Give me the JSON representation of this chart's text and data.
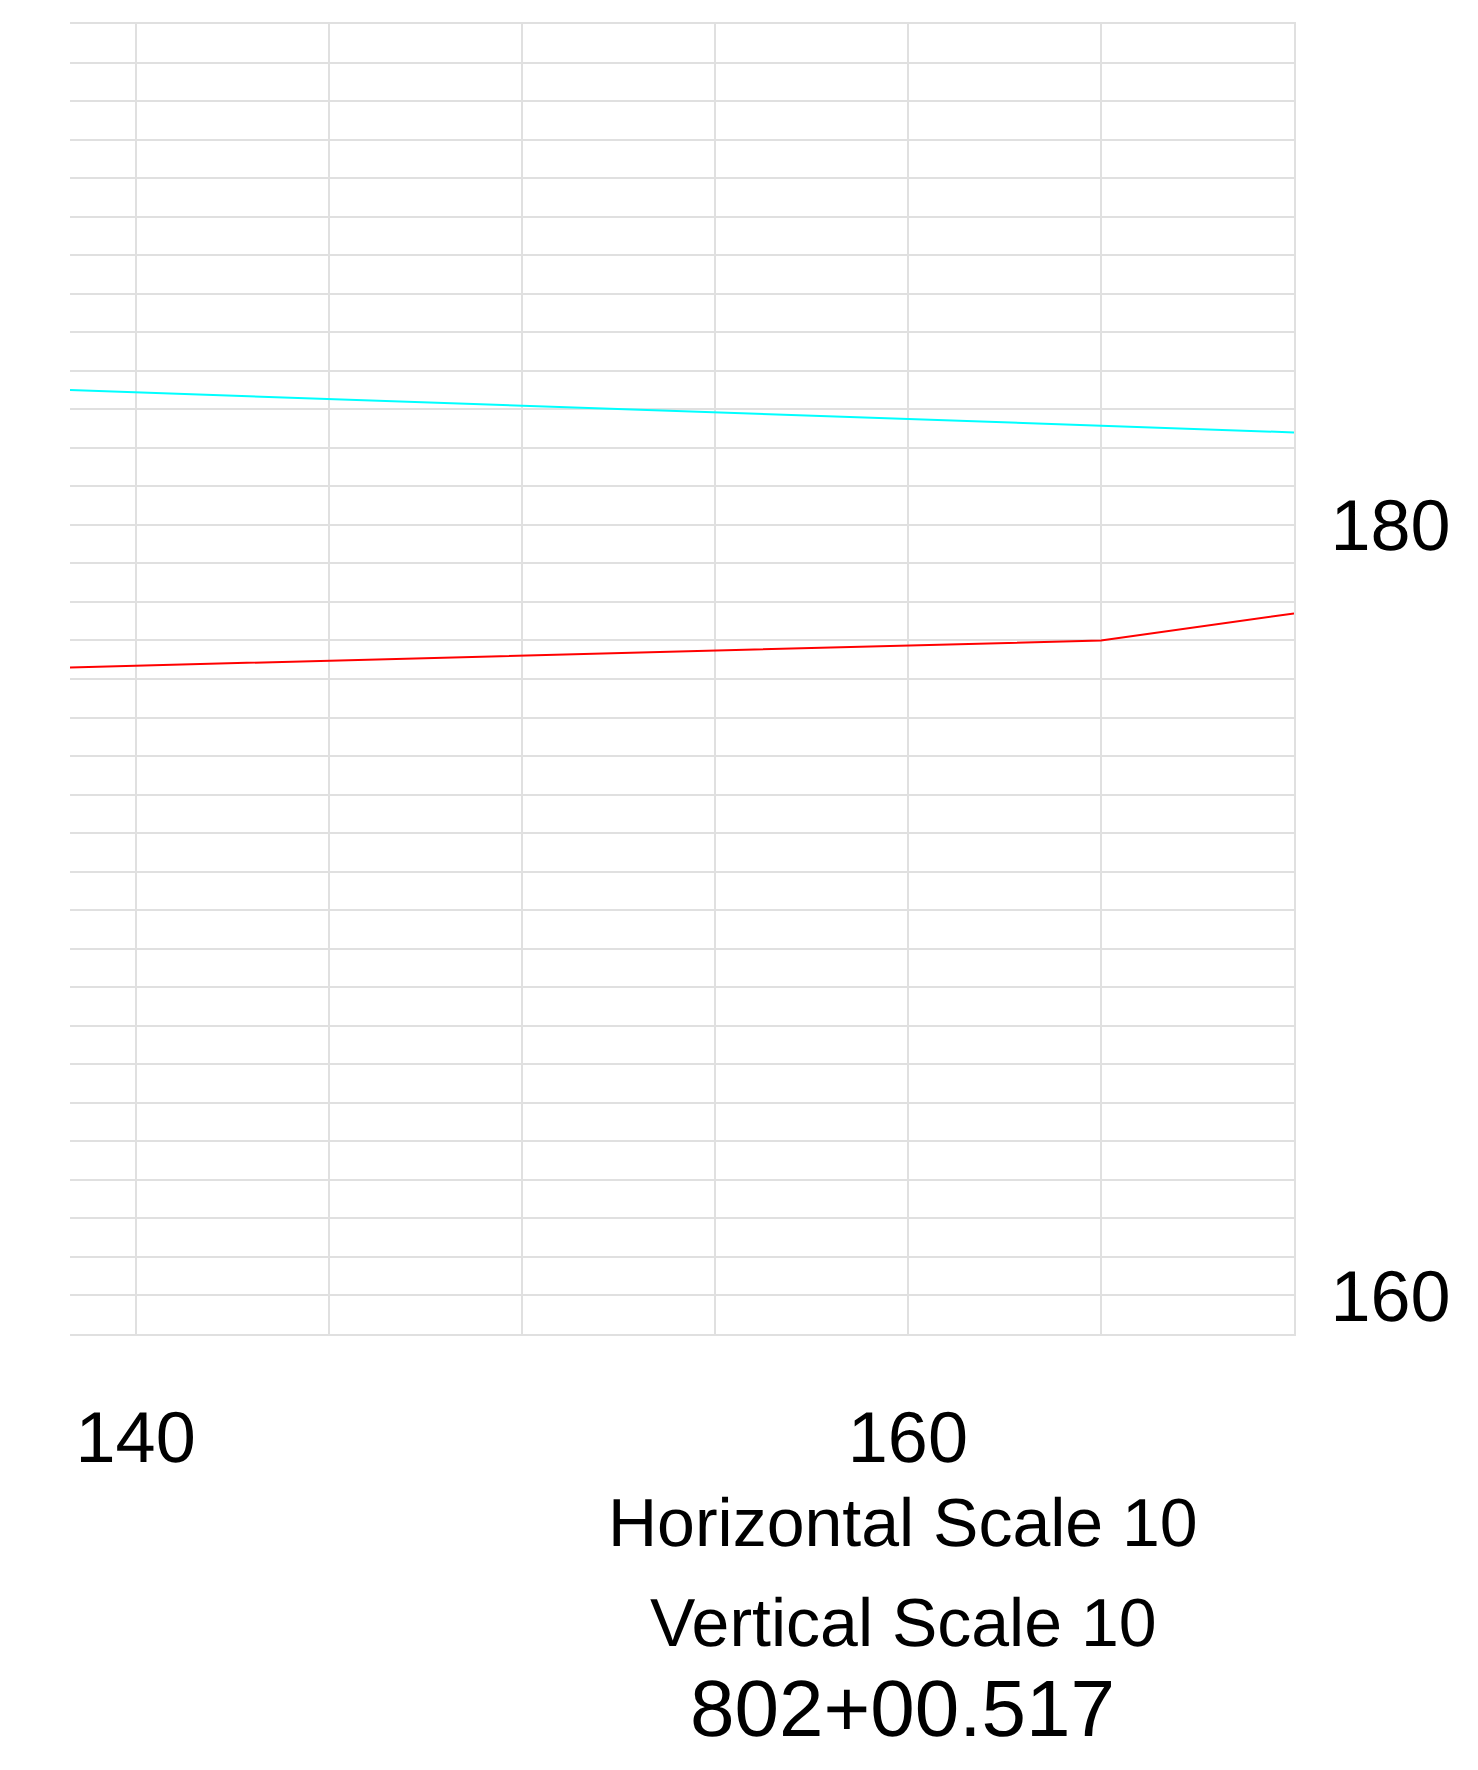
{
  "chart_data": {
    "type": "line",
    "series": [
      {
        "color": "#00ffff",
        "x": [
          138.3,
          170
        ],
        "values": [
          183.5,
          182.4
        ]
      },
      {
        "color": "#ff0000",
        "x": [
          138.3,
          165,
          170
        ],
        "values": [
          176.3,
          177.0,
          177.7
        ]
      }
    ],
    "xlim": [
      138.3,
      170
    ],
    "xticks": [
      140,
      {
        "value": 145,
        "label": null
      },
      {
        "value": 150,
        "label": null
      },
      {
        "value": 155,
        "label": null
      },
      160,
      {
        "value": 165,
        "label": null
      },
      {
        "value": 170,
        "label": null
      }
    ],
    "ylim": [
      159,
      193
    ],
    "yticks": [
      {
        "value": 159,
        "label": null
      },
      160,
      {
        "value": 161,
        "label": null
      },
      {
        "value": 162,
        "label": null
      },
      {
        "value": 163,
        "label": null
      },
      {
        "value": 164,
        "label": null
      },
      {
        "value": 165,
        "label": null
      },
      {
        "value": 166,
        "label": null
      },
      {
        "value": 167,
        "label": null
      },
      {
        "value": 168,
        "label": null
      },
      {
        "value": 169,
        "label": null
      },
      {
        "value": 170,
        "label": null
      },
      {
        "value": 171,
        "label": null
      },
      {
        "value": 172,
        "label": null
      },
      {
        "value": 173,
        "label": null
      },
      {
        "value": 174,
        "label": null
      },
      {
        "value": 175,
        "label": null
      },
      {
        "value": 176,
        "label": null
      },
      {
        "value": 177,
        "label": null
      },
      {
        "value": 178,
        "label": null
      },
      {
        "value": 179,
        "label": null
      },
      180,
      {
        "value": 181,
        "label": null
      },
      {
        "value": 182,
        "label": null
      },
      {
        "value": 183,
        "label": null
      },
      {
        "value": 184,
        "label": null
      },
      {
        "value": 185,
        "label": null
      },
      {
        "value": 186,
        "label": null
      },
      {
        "value": 187,
        "label": null
      },
      {
        "value": 188,
        "label": null
      },
      {
        "value": 189,
        "label": null
      },
      {
        "value": 190,
        "label": null
      },
      {
        "value": 191,
        "label": null
      },
      {
        "value": 192,
        "label": null
      },
      {
        "value": 193,
        "label": null
      }
    ],
    "grid": true,
    "line_style": "solid",
    "marker": "none",
    "annotations": [
      "Horizontal Scale 10",
      "Vertical Scale 10",
      "802+00.517"
    ]
  }
}
